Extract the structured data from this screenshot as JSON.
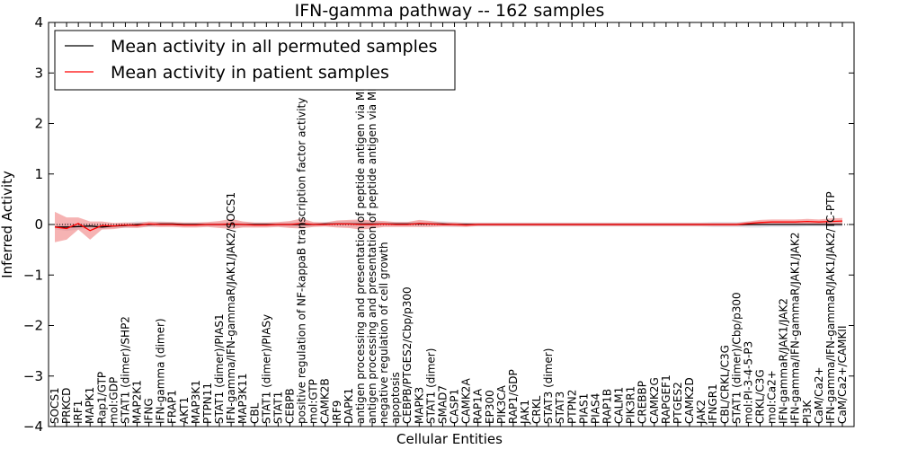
{
  "chart_data": {
    "type": "line",
    "title": "IFN-gamma pathway -- 162 samples",
    "xlabel": "Cellular Entities",
    "ylabel": "Inferred Activity",
    "ylim": [
      -4,
      4
    ],
    "yticks": [
      -4,
      -3,
      -2,
      -1,
      0,
      1,
      2,
      3,
      4
    ],
    "legend_position": "top-left",
    "categories": [
      "SOCS1",
      "PRKCD",
      "IRF1",
      "MAPK1",
      "Rap1/GTP",
      "mol:GDP",
      "STAT1 (dimer)/SHP2",
      "MAP2K1",
      "IFNG",
      "IFN-gamma (dimer)",
      "FRAP1",
      "AKT1",
      "MAP3K1",
      "PTPN11",
      "STAT1 (dimer)/PIAS1",
      "IFN-gamma/IFN-gammaR/JAK1/JAK2/SOCS1",
      "MAP3K11",
      "CBL",
      "STAT1 (dimer)/PIASy",
      "STAT1",
      "CEBPB",
      "positive regulation of NF-kappaB transcription factor activity",
      "mol:GTP",
      "CAMK2B",
      "IRF9",
      "DAPK1",
      "antigen processing and presentation of peptide antigen via MHC class I",
      "antigen processing and presentation of peptide antigen via MHC class II",
      "negative regulation of cell growth",
      "apoptosis",
      "CEBPB/PTGES2/Cbp/p300",
      "MAPK3",
      "STAT1 (dimer)",
      "SMAD7",
      "CASP1",
      "CAMK2A",
      "RAP1A",
      "EP300",
      "PIK3CA",
      "RAP1/GDP",
      "JAK1",
      "CRKL",
      "STAT3 (dimer)",
      "STAT3",
      "PTPN2",
      "PIAS1",
      "PIAS4",
      "RAP1B",
      "CALM1",
      "PIK3R1",
      "CREBBP",
      "CAMK2G",
      "RAPGEF1",
      "PTGES2",
      "CAMK2D",
      "JAK2",
      "IFNGR1",
      "CBL/CRKL/C3G",
      "STAT1 (dimer)/Cbp/p300",
      "mol:PI-3-4-5-P3",
      "CRKL/C3G",
      "mol:Ca2+",
      "IFN-gammaR/JAK1/JAK2",
      "IFN-gamma/IFN-gammaR/JAK1/JAK2",
      "PI3K",
      "CaM/Ca2+",
      "IFN-gamma/IFN-gammaR/JAK1/JAK2/TC-PTP",
      "CaM/Ca2+/CAMKII"
    ],
    "series": [
      {
        "name": "Mean activity in all permuted samples",
        "color": "#000000",
        "values": [
          -0.05,
          -0.05,
          -0.04,
          -0.03,
          -0.05,
          -0.03,
          -0.02,
          0.0,
          0.0,
          0.01,
          0.01,
          0.0,
          0.0,
          0.0,
          0.0,
          0.0,
          0.0,
          0.0,
          0.0,
          0.0,
          0.0,
          0.0,
          0.0,
          0.01,
          0.01,
          0.01,
          0.01,
          0.01,
          0.01,
          0.01,
          0.01,
          0.01,
          0.01,
          0.01,
          0.0,
          0.0,
          0.0,
          0.0,
          0.0,
          0.0,
          0.0,
          0.0,
          0.0,
          0.0,
          0.0,
          0.0,
          0.0,
          0.0,
          0.0,
          0.0,
          0.0,
          0.0,
          0.0,
          0.0,
          0.0,
          0.0,
          0.0,
          0.0,
          0.0,
          0.0,
          0.0,
          0.0,
          0.0,
          0.0,
          0.0,
          0.0,
          0.0,
          0.0
        ],
        "band_halfwidth": [
          0.04,
          0.08,
          0.06,
          0.05,
          0.04,
          0.04,
          0.05,
          0.06,
          0.05,
          0.05,
          0.04,
          0.04,
          0.04,
          0.04,
          0.04,
          0.05,
          0.05,
          0.04,
          0.04,
          0.04,
          0.05,
          0.05,
          0.04,
          0.04,
          0.05,
          0.06,
          0.06,
          0.05,
          0.04,
          0.04,
          0.04,
          0.05,
          0.05,
          0.05,
          0.05,
          0.04,
          0.04,
          0.04,
          0.04,
          0.04,
          0.04,
          0.04,
          0.04,
          0.04,
          0.04,
          0.04,
          0.04,
          0.04,
          0.04,
          0.04,
          0.04,
          0.04,
          0.04,
          0.04,
          0.04,
          0.04,
          0.05,
          0.05,
          0.05,
          0.06,
          0.06,
          0.05,
          0.05,
          0.05,
          0.04,
          0.04,
          0.04,
          0.04
        ]
      },
      {
        "name": "Mean activity in patient samples",
        "color": "#ff0000",
        "values": [
          -0.05,
          -0.08,
          0.02,
          -0.12,
          -0.02,
          -0.03,
          -0.01,
          -0.02,
          0.01,
          0.0,
          0.0,
          -0.01,
          -0.01,
          0.0,
          0.0,
          0.01,
          0.0,
          -0.01,
          -0.01,
          0.0,
          0.0,
          0.02,
          0.0,
          0.0,
          0.01,
          0.01,
          0.0,
          0.0,
          0.01,
          0.0,
          0.0,
          0.02,
          0.01,
          0.0,
          0.0,
          -0.01,
          0.0,
          0.0,
          0.0,
          0.0,
          0.0,
          0.0,
          0.0,
          0.0,
          0.0,
          0.0,
          0.0,
          0.0,
          0.0,
          0.0,
          0.0,
          0.0,
          0.0,
          0.0,
          0.0,
          0.0,
          0.0,
          0.0,
          0.0,
          0.02,
          0.04,
          0.05,
          0.05,
          0.05,
          0.06,
          0.05,
          0.06,
          0.07
        ],
        "band_halfwidth": [
          0.3,
          0.22,
          0.12,
          0.18,
          0.08,
          0.06,
          0.05,
          0.05,
          0.05,
          0.05,
          0.05,
          0.05,
          0.05,
          0.05,
          0.07,
          0.1,
          0.06,
          0.05,
          0.05,
          0.05,
          0.07,
          0.1,
          0.05,
          0.04,
          0.07,
          0.08,
          0.1,
          0.08,
          0.06,
          0.05,
          0.05,
          0.07,
          0.06,
          0.04,
          0.04,
          0.04,
          0.03,
          0.03,
          0.03,
          0.03,
          0.03,
          0.03,
          0.03,
          0.03,
          0.03,
          0.03,
          0.03,
          0.03,
          0.03,
          0.03,
          0.03,
          0.03,
          0.03,
          0.03,
          0.03,
          0.03,
          0.03,
          0.03,
          0.03,
          0.04,
          0.05,
          0.05,
          0.05,
          0.05,
          0.05,
          0.05,
          0.06,
          0.06
        ]
      }
    ],
    "colors": {
      "permuted_band": "#c8c8d6",
      "patient_band": "#f08080"
    }
  }
}
